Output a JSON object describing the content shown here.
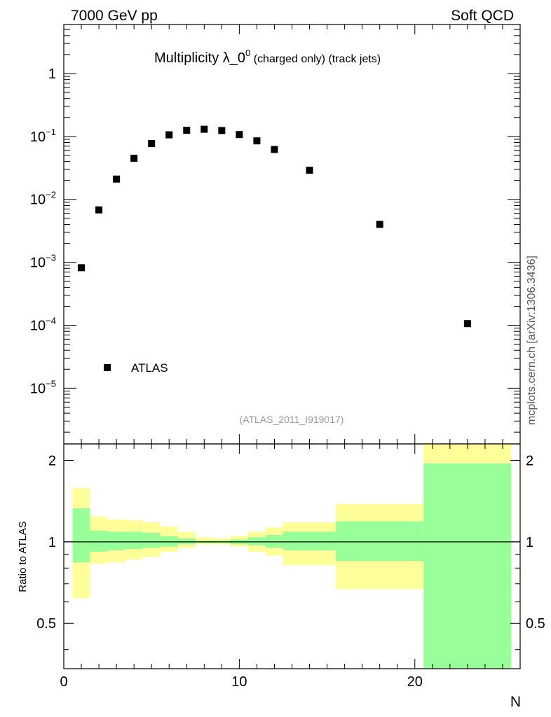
{
  "header": {
    "left_label": "7000 GeV pp",
    "right_label": "Soft QCD",
    "side_label": "mcplots.cern.ch [arXiv:1306.3436]"
  },
  "chart_data": [
    {
      "type": "scatter",
      "title_main": "Multiplicity λ_0",
      "title_sup": "0",
      "title_suffix": " (charged only) (track jets)",
      "analysis_label": "(ATLAS_2011_I919017)",
      "yscale": "log",
      "xlim": [
        0,
        26
      ],
      "ylim": [
        1.3e-06,
        6
      ],
      "x_ticks": [
        0,
        10,
        20
      ],
      "y_ticks": [
        {
          "base": "1",
          "exp": "",
          "value": 1
        },
        {
          "base": "10",
          "exp": "−1",
          "value": 0.1
        },
        {
          "base": "10",
          "exp": "−2",
          "value": 0.01
        },
        {
          "base": "10",
          "exp": "−3",
          "value": 0.001
        },
        {
          "base": "10",
          "exp": "−4",
          "value": 0.0001
        },
        {
          "base": "10",
          "exp": "−5",
          "value": 1e-05
        }
      ],
      "legend": {
        "label": "ATLAS",
        "position": "bottom-left"
      },
      "series": [
        {
          "name": "ATLAS",
          "marker": "square",
          "color": "#000000",
          "x": [
            1,
            2,
            3,
            4,
            5,
            6,
            7,
            8,
            9,
            10,
            11,
            12,
            14,
            18,
            23
          ],
          "y": [
            0.00082,
            0.0068,
            0.021,
            0.045,
            0.077,
            0.106,
            0.125,
            0.13,
            0.124,
            0.107,
            0.085,
            0.062,
            0.029,
            0.004,
            0.000106
          ]
        }
      ]
    },
    {
      "type": "area",
      "ylabel": "Ratio to ATLAS",
      "xlabel": "N",
      "yscale": "log",
      "xlim": [
        0,
        26
      ],
      "ylim": [
        0.34,
        2.3
      ],
      "x_ticks": [
        0,
        10,
        20
      ],
      "y_ticks": [
        {
          "label": "0.5",
          "value": 0.5
        },
        {
          "label": "1",
          "value": 1
        },
        {
          "label": "2",
          "value": 2
        }
      ],
      "reference_line": 1,
      "colors": {
        "inner_band": "#99ff99",
        "outer_band": "#ffff99"
      },
      "bins": [
        {
          "lo": 0.5,
          "hi": 1.5,
          "inner": [
            0.84,
            1.33
          ],
          "outer": [
            0.62,
            1.58
          ]
        },
        {
          "lo": 1.5,
          "hi": 2.5,
          "inner": [
            0.92,
            1.1
          ],
          "outer": [
            0.83,
            1.24
          ]
        },
        {
          "lo": 2.5,
          "hi": 3.5,
          "inner": [
            0.93,
            1.09
          ],
          "outer": [
            0.84,
            1.21
          ]
        },
        {
          "lo": 3.5,
          "hi": 4.5,
          "inner": [
            0.94,
            1.09
          ],
          "outer": [
            0.86,
            1.2
          ]
        },
        {
          "lo": 4.5,
          "hi": 5.5,
          "inner": [
            0.95,
            1.08
          ],
          "outer": [
            0.88,
            1.18
          ]
        },
        {
          "lo": 5.5,
          "hi": 6.5,
          "inner": [
            0.96,
            1.05
          ],
          "outer": [
            0.92,
            1.14
          ]
        },
        {
          "lo": 6.5,
          "hi": 7.5,
          "inner": [
            0.98,
            1.03
          ],
          "outer": [
            0.95,
            1.09
          ]
        },
        {
          "lo": 7.5,
          "hi": 8.5,
          "inner": [
            0.99,
            1.01
          ],
          "outer": [
            0.98,
            1.04
          ]
        },
        {
          "lo": 8.5,
          "hi": 9.5,
          "inner": [
            0.99,
            1.01
          ],
          "outer": [
            0.98,
            1.03
          ]
        },
        {
          "lo": 9.5,
          "hi": 10.5,
          "inner": [
            0.98,
            1.02
          ],
          "outer": [
            0.96,
            1.05
          ]
        },
        {
          "lo": 10.5,
          "hi": 11.5,
          "inner": [
            0.97,
            1.04
          ],
          "outer": [
            0.92,
            1.09
          ]
        },
        {
          "lo": 11.5,
          "hi": 12.5,
          "inner": [
            0.95,
            1.06
          ],
          "outer": [
            0.89,
            1.13
          ]
        },
        {
          "lo": 12.5,
          "hi": 15.5,
          "inner": [
            0.93,
            1.09
          ],
          "outer": [
            0.82,
            1.18
          ]
        },
        {
          "lo": 15.5,
          "hi": 20.5,
          "inner": [
            0.85,
            1.19
          ],
          "outer": [
            0.67,
            1.38
          ]
        },
        {
          "lo": 20.5,
          "hi": 25.5,
          "inner": [
            0.34,
            1.95
          ],
          "outer": [
            0.34,
            2.3
          ]
        }
      ]
    }
  ]
}
